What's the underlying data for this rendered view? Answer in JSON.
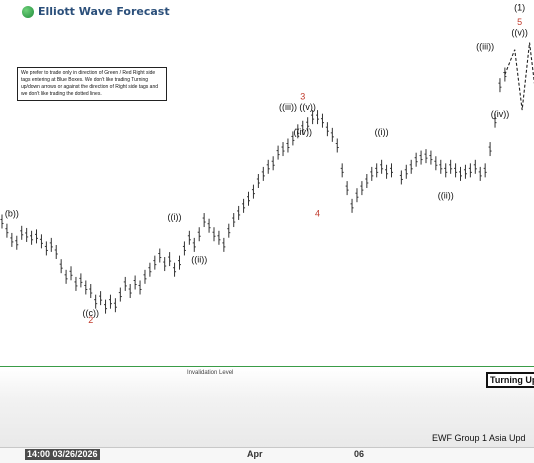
{
  "brand": {
    "name": "Elliott Wave Forecast"
  },
  "notice": "We prefer to trade only in direction of Green / Red Right side tags entering at Blue Boxes. We don't like trading Turning up/down arrows or against the direction of Right side tags and we don't like trading the dotted lines.",
  "invalidation_label": "Invalidation Level",
  "turning_badge": "Turning Up",
  "footer": "EWF Group 1 Asia Upd",
  "colors": {
    "bars": "#333333",
    "wave_red": "#c0392b",
    "invalidation": "#3a9c47",
    "labels": "#111111"
  },
  "chart_data": {
    "type": "bar",
    "x_ticks": [
      "14:00 03/26/2026",
      "Apr",
      "06"
    ],
    "series": [
      {
        "values": [
          [
            0,
            14.48
          ],
          [
            1,
            14.35
          ],
          [
            2,
            14.22
          ],
          [
            3,
            14.18
          ],
          [
            4,
            14.32
          ],
          [
            5,
            14.29
          ],
          [
            6,
            14.25
          ],
          [
            7,
            14.27
          ],
          [
            8,
            14.2
          ],
          [
            9,
            14.1
          ],
          [
            10,
            14.15
          ],
          [
            11,
            14.05
          ],
          [
            12,
            13.85
          ],
          [
            13,
            13.7
          ],
          [
            14,
            13.75
          ],
          [
            15,
            13.6
          ],
          [
            16,
            13.65
          ],
          [
            17,
            13.55
          ],
          [
            18,
            13.5
          ],
          [
            19,
            13.35
          ],
          [
            20,
            13.4
          ],
          [
            21,
            13.28
          ],
          [
            22,
            13.35
          ],
          [
            23,
            13.3
          ],
          [
            24,
            13.45
          ],
          [
            25,
            13.6
          ],
          [
            26,
            13.5
          ],
          [
            27,
            13.62
          ],
          [
            28,
            13.55
          ],
          [
            29,
            13.7
          ],
          [
            30,
            13.8
          ],
          [
            31,
            13.9
          ],
          [
            32,
            14.0
          ],
          [
            33,
            13.88
          ],
          [
            34,
            13.95
          ],
          [
            35,
            13.8
          ],
          [
            36,
            13.9
          ],
          [
            37,
            14.1
          ],
          [
            38,
            14.25
          ],
          [
            39,
            14.15
          ],
          [
            40,
            14.3
          ],
          [
            41,
            14.5
          ],
          [
            42,
            14.42
          ],
          [
            43,
            14.3
          ],
          [
            44,
            14.25
          ],
          [
            45,
            14.15
          ],
          [
            46,
            14.35
          ],
          [
            47,
            14.5
          ],
          [
            48,
            14.6
          ],
          [
            49,
            14.7
          ],
          [
            50,
            14.8
          ],
          [
            51,
            14.9
          ],
          [
            52,
            15.05
          ],
          [
            53,
            15.15
          ],
          [
            54,
            15.25
          ],
          [
            55,
            15.3
          ],
          [
            56,
            15.45
          ],
          [
            57,
            15.5
          ],
          [
            58,
            15.55
          ],
          [
            59,
            15.65
          ],
          [
            60,
            15.75
          ],
          [
            61,
            15.8
          ],
          [
            62,
            15.85
          ],
          [
            63,
            15.95
          ],
          [
            64,
            15.95
          ],
          [
            65,
            15.9
          ],
          [
            66,
            15.78
          ],
          [
            67,
            15.7
          ],
          [
            68,
            15.55
          ],
          [
            69,
            15.2
          ],
          [
            70,
            14.95
          ],
          [
            71,
            14.7
          ],
          [
            72,
            14.85
          ],
          [
            73,
            14.95
          ],
          [
            74,
            15.05
          ],
          [
            75,
            15.15
          ],
          [
            76,
            15.2
          ],
          [
            77,
            15.25
          ],
          [
            78,
            15.18
          ],
          [
            79,
            15.2
          ],
          [
            81,
            15.1
          ],
          [
            82,
            15.18
          ],
          [
            83,
            15.25
          ],
          [
            84,
            15.35
          ],
          [
            85,
            15.38
          ],
          [
            86,
            15.4
          ],
          [
            87,
            15.38
          ],
          [
            88,
            15.3
          ],
          [
            89,
            15.25
          ],
          [
            90,
            15.2
          ],
          [
            91,
            15.25
          ],
          [
            92,
            15.2
          ],
          [
            93,
            15.15
          ],
          [
            94,
            15.18
          ],
          [
            95,
            15.2
          ],
          [
            96,
            15.25
          ],
          [
            97,
            15.15
          ],
          [
            98,
            15.2
          ],
          [
            99,
            15.5
          ],
          [
            100,
            15.9
          ],
          [
            101,
            16.4
          ],
          [
            102,
            16.55
          ]
        ]
      }
    ],
    "labels": [
      {
        "text": "(b))",
        "x": 2,
        "y": 14.55
      },
      {
        "text": "((c))",
        "x": 18,
        "y": 13.15
      },
      {
        "text": "2",
        "x": 18,
        "y": 13.05,
        "color": "red"
      },
      {
        "text": "((i))",
        "x": 35,
        "y": 14.5
      },
      {
        "text": "((ii))",
        "x": 40,
        "y": 13.9
      },
      {
        "text": "((iii))",
        "x": 58,
        "y": 16.05
      },
      {
        "text": "((iv))",
        "x": 61,
        "y": 15.7
      },
      {
        "text": "((v))",
        "x": 62,
        "y": 16.05
      },
      {
        "text": "3",
        "x": 61,
        "y": 16.2,
        "color": "red"
      },
      {
        "text": "4",
        "x": 64,
        "y": 14.55,
        "color": "red"
      },
      {
        "text": "((i))",
        "x": 77,
        "y": 15.7
      },
      {
        "text": "((ii))",
        "x": 90,
        "y": 14.8
      },
      {
        "text": "((iii))",
        "x": 98,
        "y": 16.9
      },
      {
        "text": "((iv))",
        "x": 101,
        "y": 15.95
      },
      {
        "text": "((v))",
        "x": 105,
        "y": 17.1
      },
      {
        "text": "5",
        "x": 105,
        "y": 17.25,
        "color": "red"
      },
      {
        "text": "(1)",
        "x": 105,
        "y": 17.45
      }
    ],
    "projection": [
      [
        102,
        16.55
      ],
      [
        104,
        16.9
      ],
      [
        105.5,
        16.05
      ],
      [
        107,
        17.0
      ],
      [
        109,
        15.85
      ]
    ],
    "ylim": [
      12.5,
      17.6
    ],
    "xlim": [
      0,
      107.5
    ],
    "grid": false,
    "legend": "none"
  }
}
